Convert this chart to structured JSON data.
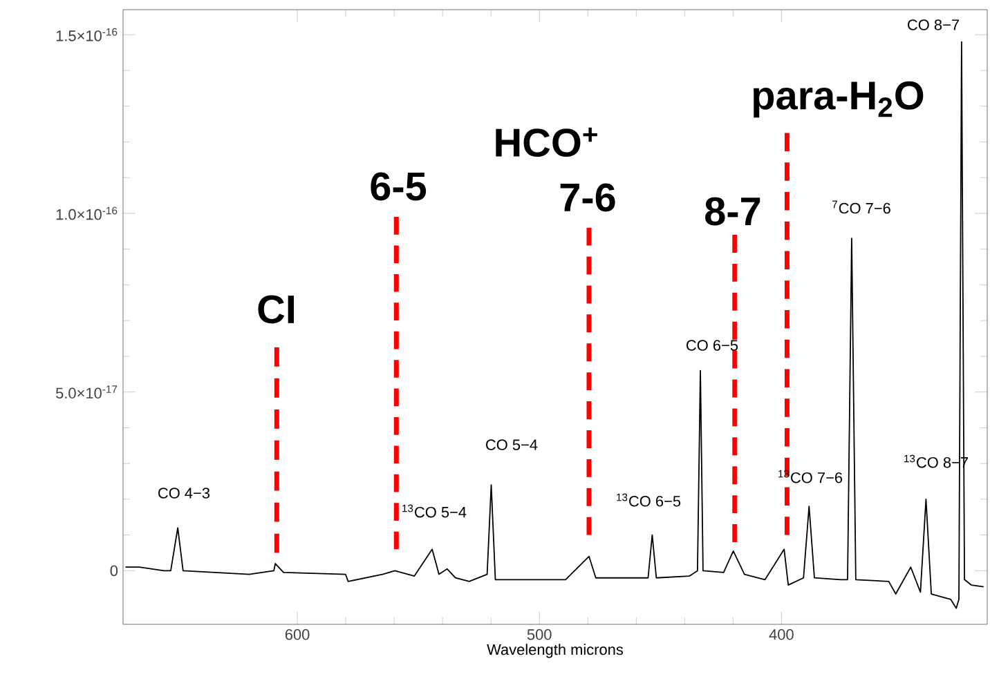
{
  "chart_data": {
    "type": "line",
    "xlabel": "Wavelength microns",
    "xlim": [
      672,
      315
    ],
    "ylim": [
      -1.5e-17,
      1.57e-16
    ],
    "xticks": [
      600,
      500,
      400
    ],
    "yticks": [
      {
        "value": 0,
        "label": "0"
      },
      {
        "value": 5e-17,
        "label": "5.0×10$^{-17}$"
      },
      {
        "value": 1e-16,
        "label": "1.0×10$^{-16}$"
      },
      {
        "value": 1.5e-16,
        "label": "1.5×10$^{-16}$"
      }
    ],
    "series": [
      {
        "color": "#000000",
        "line_style": "solid",
        "x": [
          671,
          665.3,
          655.1,
          652.3,
          649.4,
          647.2,
          619.9,
          609.7,
          609.1,
          605.7,
          580.1,
          579.0,
          564.8,
          559.7,
          551.7,
          544.3,
          541.5,
          538.1,
          534.7,
          529.0,
          521.6,
          519.9,
          518.2,
          500.6,
          489.2,
          479.5,
          476.7,
          455.1,
          453.4,
          451.7,
          438.1,
          434.7,
          433.5,
          432.4,
          423.9,
          419.9,
          415.3,
          406.8,
          398.9,
          397.2,
          390.9,
          388.6,
          386.4,
          375.6,
          372.7,
          371.0,
          369.3,
          355.7,
          352.8,
          346.6,
          342.6,
          340.3,
          338.1,
          330.1,
          327.8,
          326.7,
          325.6,
          324.4,
          321.6,
          316.5
        ],
        "values": [
          1e-18,
          1e-18,
          0,
          0,
          1.2e-17,
          0,
          -1e-18,
          0,
          2e-18,
          -5e-19,
          -1e-18,
          -3e-18,
          -1e-18,
          0,
          -1.5e-18,
          6e-18,
          -1e-18,
          5e-19,
          -2e-18,
          -3e-18,
          -1e-18,
          2.4e-17,
          -2.5e-18,
          -2.5e-18,
          -2.5e-18,
          4e-18,
          -2e-18,
          -2e-18,
          1e-17,
          -2e-18,
          -1.5e-18,
          0,
          5.6e-17,
          0,
          -5e-19,
          5.5e-18,
          -1e-18,
          -2.5e-18,
          6e-18,
          -4e-18,
          -2e-18,
          1.8e-17,
          -2e-18,
          -2.5e-18,
          -2.5e-18,
          9.3e-17,
          -2.5e-18,
          -3e-18,
          -6.5e-18,
          1e-18,
          -6e-18,
          2e-17,
          -6.5e-18,
          -8e-18,
          -1.05e-17,
          -8e-18,
          1.48e-16,
          -2.5e-18,
          -4e-18,
          -4.5e-18
        ]
      },
      {
        "color": "#ff0000",
        "line_style": "dashed",
        "x": [
          608.5,
          608.5
        ],
        "values": [
          5e-18,
          6.25e-17
        ]
      },
      {
        "color": "#ff0000",
        "line_style": "dashed",
        "x": [
          559.1,
          559.1
        ],
        "values": [
          6e-18,
          9.9e-17
        ]
      },
      {
        "color": "#ff0000",
        "line_style": "dashed",
        "x": [
          479.5,
          479.5
        ],
        "values": [
          1e-17,
          9.6e-17
        ]
      },
      {
        "color": "#ff0000",
        "line_style": "dashed",
        "x": [
          419.3,
          419.3
        ],
        "values": [
          8e-18,
          9.4e-17
        ]
      },
      {
        "color": "#ff0000",
        "line_style": "dashed",
        "x": [
          397.7,
          397.7
        ],
        "values": [
          1e-17,
          1.225e-16
        ]
      }
    ],
    "annotations": [
      "CI",
      "6-5",
      "HCO$^{+}$",
      "7-6",
      "8-7",
      "para-H$_{2}$O",
      "CO 4−3",
      "$^{13}$CO 5−4",
      "CO 5−4",
      "$^{13}$CO 6−5",
      "CO 6−5",
      "$^{13}$CO 7−6",
      "$^{7}$CO 7−6",
      "$^{13}$CO 8−7",
      "CO 8−7"
    ]
  }
}
